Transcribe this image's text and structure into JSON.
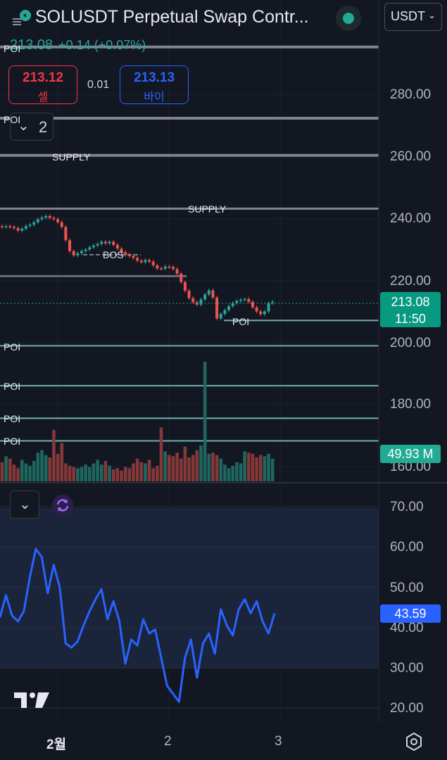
{
  "header": {
    "title": "SOLUSDT Perpetual Swap Contr...",
    "currency": "USDT",
    "last_price": "213.08",
    "change": "+0.14 (+0.07%)"
  },
  "trade": {
    "sell_price": "213.12",
    "sell_label": "셀",
    "spread": "0.01",
    "buy_price": "213.13",
    "buy_label": "바이"
  },
  "indicators_count": "2",
  "labels": {
    "poi": "POI",
    "supply": "SUPPLY",
    "bos": "BOS"
  },
  "price_axis": [
    "280.00",
    "260.00",
    "240.00",
    "220.00",
    "200.00",
    "180.00",
    "160.00"
  ],
  "price_tag": {
    "price": "213.08",
    "countdown": "11:50"
  },
  "volume_tag": "49.93 M",
  "rsi_axis": [
    "70.00",
    "60.00",
    "50.00",
    "40.00",
    "30.00",
    "20.00"
  ],
  "rsi_tag": "43.59",
  "time_axis": [
    "2월",
    "2",
    "3"
  ],
  "colors": {
    "up": "#26a69a",
    "down": "#ef5350",
    "rsi": "#2962ff",
    "background": "#131722"
  },
  "icons": [
    "logo-icon",
    "status-dot-icon",
    "chevron-down-icon",
    "refresh-icon",
    "tradingview-logo",
    "settings-icon"
  ],
  "chart_data": [
    {
      "type": "candlestick",
      "title": "",
      "y_axis_ticks": [
        280,
        260,
        240,
        220,
        200,
        180,
        160
      ],
      "ylim": [
        158,
        297
      ],
      "last_price": 213.08,
      "levels": [
        {
          "label": "POI",
          "value": 295.5
        },
        {
          "label": "POI",
          "value": 272.5
        },
        {
          "label": "SUPPLY",
          "value": 260.5
        },
        {
          "label": "SUPPLY",
          "value": 243.3
        },
        {
          "label": "",
          "value": 221.5
        },
        {
          "label": "POI",
          "value": 207.2
        },
        {
          "label": "POI",
          "value": 199.0
        },
        {
          "label": "POI",
          "value": 186.1
        },
        {
          "label": "POI",
          "value": 175.6
        },
        {
          "label": "POI",
          "value": 168.3
        }
      ],
      "closes": [
        237.3,
        237.6,
        237.4,
        237.0,
        236.2,
        236.8,
        237.7,
        238.1,
        238.9,
        239.9,
        240.4,
        240.9,
        240.3,
        239.9,
        238.9,
        237.4,
        233.1,
        229.6,
        228.2,
        228.9,
        229.6,
        230.1,
        230.8,
        231.4,
        231.9,
        232.6,
        232.1,
        232.6,
        231.6,
        230.4,
        229.2,
        228.4,
        228.0,
        227.4,
        226.5,
        226.0,
        226.7,
        226.2,
        225.0,
        224.0,
        223.9,
        224.6,
        224.5,
        223.8,
        222.3,
        219.6,
        216.8,
        214.4,
        213.1,
        212.3,
        214.0,
        215.6,
        216.9,
        214.6,
        207.8,
        209.3,
        210.5,
        211.8,
        212.8,
        213.5,
        213.9,
        214.1,
        213.2,
        211.4,
        210.1,
        209.2,
        210.1,
        212.8,
        213.2
      ],
      "volume": {
        "last": "49.93 M",
        "values": [
          32,
          42,
          38,
          28,
          22,
          36,
          30,
          26,
          34,
          48,
          52,
          44,
          40,
          86,
          46,
          64,
          30,
          26,
          24,
          22,
          24,
          28,
          24,
          30,
          36,
          28,
          34,
          26,
          20,
          22,
          18,
          24,
          22,
          30,
          38,
          32,
          30,
          36,
          22,
          26,
          90,
          50,
          44,
          42,
          48,
          38,
          58,
          40,
          44,
          52,
          60,
          200,
          46,
          48,
          44,
          38,
          28,
          22,
          26,
          32,
          30,
          50,
          48,
          46,
          40,
          44,
          42,
          46,
          38
        ]
      }
    },
    {
      "type": "line",
      "title": "",
      "name": "",
      "y_axis_ticks": [
        70,
        60,
        50,
        40,
        30,
        20
      ],
      "ylim": [
        17,
        73.5
      ],
      "values": [
        42.5,
        48.0,
        43.0,
        41.5,
        44.0,
        52.5,
        59.5,
        57.5,
        48.5,
        55.5,
        50.0,
        36.0,
        35.0,
        36.5,
        40.5,
        44.0,
        47.0,
        49.5,
        42.0,
        46.5,
        41.5,
        31.0,
        37.0,
        35.5,
        42.0,
        38.5,
        39.5,
        32.5,
        25.5,
        23.5,
        21.5,
        32.5,
        37.0,
        27.5,
        36.0,
        38.5,
        33.5,
        44.5,
        40.5,
        38.0,
        44.5,
        47.0,
        43.5,
        46.5,
        41.5,
        38.5,
        43.5
      ]
    }
  ]
}
